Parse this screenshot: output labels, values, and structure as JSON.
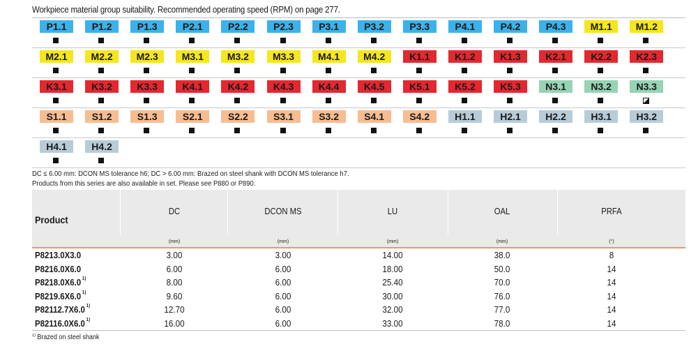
{
  "caption": "Workpiece material group suitability. Recommended operating speed (RPM) on page 277.",
  "colors": {
    "P": "#3bb2e9",
    "M": "#f5e71d",
    "K": "#e1292f",
    "N": "#96d4b5",
    "S": "#f6bd92",
    "H": "#b7ccd7"
  },
  "material_rows": [
    [
      {
        "label": "P1.1",
        "group": "P",
        "mark": "full"
      },
      {
        "label": "P1.2",
        "group": "P",
        "mark": "full"
      },
      {
        "label": "P1.3",
        "group": "P",
        "mark": "full"
      },
      {
        "label": "P2.1",
        "group": "P",
        "mark": "full"
      },
      {
        "label": "P2.2",
        "group": "P",
        "mark": "full"
      },
      {
        "label": "P2.3",
        "group": "P",
        "mark": "full"
      },
      {
        "label": "P3.1",
        "group": "P",
        "mark": "full"
      },
      {
        "label": "P3.2",
        "group": "P",
        "mark": "full"
      },
      {
        "label": "P3.3",
        "group": "P",
        "mark": "full"
      },
      {
        "label": "P4.1",
        "group": "P",
        "mark": "full"
      },
      {
        "label": "P4.2",
        "group": "P",
        "mark": "full"
      },
      {
        "label": "P4.3",
        "group": "P",
        "mark": "full"
      },
      {
        "label": "M1.1",
        "group": "M",
        "mark": "full"
      },
      {
        "label": "M1.2",
        "group": "M",
        "mark": "full"
      }
    ],
    [
      {
        "label": "M2.1",
        "group": "M",
        "mark": "full"
      },
      {
        "label": "M2.2",
        "group": "M",
        "mark": "full"
      },
      {
        "label": "M2.3",
        "group": "M",
        "mark": "full"
      },
      {
        "label": "M3.1",
        "group": "M",
        "mark": "full"
      },
      {
        "label": "M3.2",
        "group": "M",
        "mark": "full"
      },
      {
        "label": "M3.3",
        "group": "M",
        "mark": "full"
      },
      {
        "label": "M4.1",
        "group": "M",
        "mark": "full"
      },
      {
        "label": "M4.2",
        "group": "M",
        "mark": "full"
      },
      {
        "label": "K1.1",
        "group": "K",
        "mark": "full"
      },
      {
        "label": "K1.2",
        "group": "K",
        "mark": "full"
      },
      {
        "label": "K1.3",
        "group": "K",
        "mark": "full"
      },
      {
        "label": "K2.1",
        "group": "K",
        "mark": "full"
      },
      {
        "label": "K2.2",
        "group": "K",
        "mark": "full"
      },
      {
        "label": "K2.3",
        "group": "K",
        "mark": "full"
      }
    ],
    [
      {
        "label": "K3.1",
        "group": "K",
        "mark": "full"
      },
      {
        "label": "K3.2",
        "group": "K",
        "mark": "full"
      },
      {
        "label": "K3.3",
        "group": "K",
        "mark": "full"
      },
      {
        "label": "K4.1",
        "group": "K",
        "mark": "full"
      },
      {
        "label": "K4.2",
        "group": "K",
        "mark": "full"
      },
      {
        "label": "K4.3",
        "group": "K",
        "mark": "full"
      },
      {
        "label": "K4.4",
        "group": "K",
        "mark": "full"
      },
      {
        "label": "K4.5",
        "group": "K",
        "mark": "full"
      },
      {
        "label": "K5.1",
        "group": "K",
        "mark": "full"
      },
      {
        "label": "K5.2",
        "group": "K",
        "mark": "full"
      },
      {
        "label": "K5.3",
        "group": "K",
        "mark": "full"
      },
      {
        "label": "N3.1",
        "group": "N",
        "mark": "full"
      },
      {
        "label": "N3.2",
        "group": "N",
        "mark": "full"
      },
      {
        "label": "N3.3",
        "group": "N",
        "mark": "half"
      }
    ],
    [
      {
        "label": "S1.1",
        "group": "S",
        "mark": "full"
      },
      {
        "label": "S1.2",
        "group": "S",
        "mark": "full"
      },
      {
        "label": "S1.3",
        "group": "S",
        "mark": "full"
      },
      {
        "label": "S2.1",
        "group": "S",
        "mark": "full"
      },
      {
        "label": "S2.2",
        "group": "S",
        "mark": "full"
      },
      {
        "label": "S3.1",
        "group": "S",
        "mark": "full"
      },
      {
        "label": "S3.2",
        "group": "S",
        "mark": "full"
      },
      {
        "label": "S4.1",
        "group": "S",
        "mark": "full"
      },
      {
        "label": "S4.2",
        "group": "S",
        "mark": "full"
      },
      {
        "label": "H1.1",
        "group": "H",
        "mark": "full"
      },
      {
        "label": "H2.1",
        "group": "H",
        "mark": "full"
      },
      {
        "label": "H2.2",
        "group": "H",
        "mark": "full"
      },
      {
        "label": "H3.1",
        "group": "H",
        "mark": "full"
      },
      {
        "label": "H3.2",
        "group": "H",
        "mark": "full"
      }
    ],
    [
      {
        "label": "H4.1",
        "group": "H",
        "mark": "full"
      },
      {
        "label": "H4.2",
        "group": "H",
        "mark": "full"
      }
    ]
  ],
  "notes": {
    "line1": "DC ≤ 6.00 mm: DCON MS tolerance h6; DC > 6.00 mm: Brazed on steel shank with DCON MS tolerance h7.",
    "line2": "Products from this series are also available in set. Please see P880 or P890."
  },
  "table": {
    "product_header": "Product",
    "columns": [
      {
        "name": "DC",
        "unit": "(mm)"
      },
      {
        "name": "DCON MS",
        "unit": "(mm)"
      },
      {
        "name": "LU",
        "unit": "(mm)"
      },
      {
        "name": "OAL",
        "unit": "(mm)"
      },
      {
        "name": "PRFA",
        "unit": "(°)"
      }
    ],
    "rows": [
      {
        "product": "P8213.0X3.0",
        "sup": "",
        "values": [
          "3.00",
          "3.00",
          "14.00",
          "38.0",
          "8"
        ]
      },
      {
        "product": "P8216.0X6.0",
        "sup": "",
        "values": [
          "6.00",
          "6.00",
          "18.00",
          "50.0",
          "14"
        ]
      },
      {
        "product": "P8218.0X6.0",
        "sup": "1)",
        "values": [
          "8.00",
          "6.00",
          "25.40",
          "70.0",
          "14"
        ]
      },
      {
        "product": "P8219.6X6.0",
        "sup": "1)",
        "values": [
          "9.60",
          "6.00",
          "30.00",
          "76.0",
          "14"
        ]
      },
      {
        "product": "P82112.7X6.0",
        "sup": "1)",
        "values": [
          "12.70",
          "6.00",
          "32.00",
          "77.0",
          "14"
        ]
      },
      {
        "product": "P82116.0X6.0",
        "sup": "1)",
        "values": [
          "16.00",
          "6.00",
          "33.00",
          "78.0",
          "14"
        ]
      }
    ]
  },
  "footnote": {
    "mark": "1)",
    "text": "Brazed on steel shank"
  }
}
